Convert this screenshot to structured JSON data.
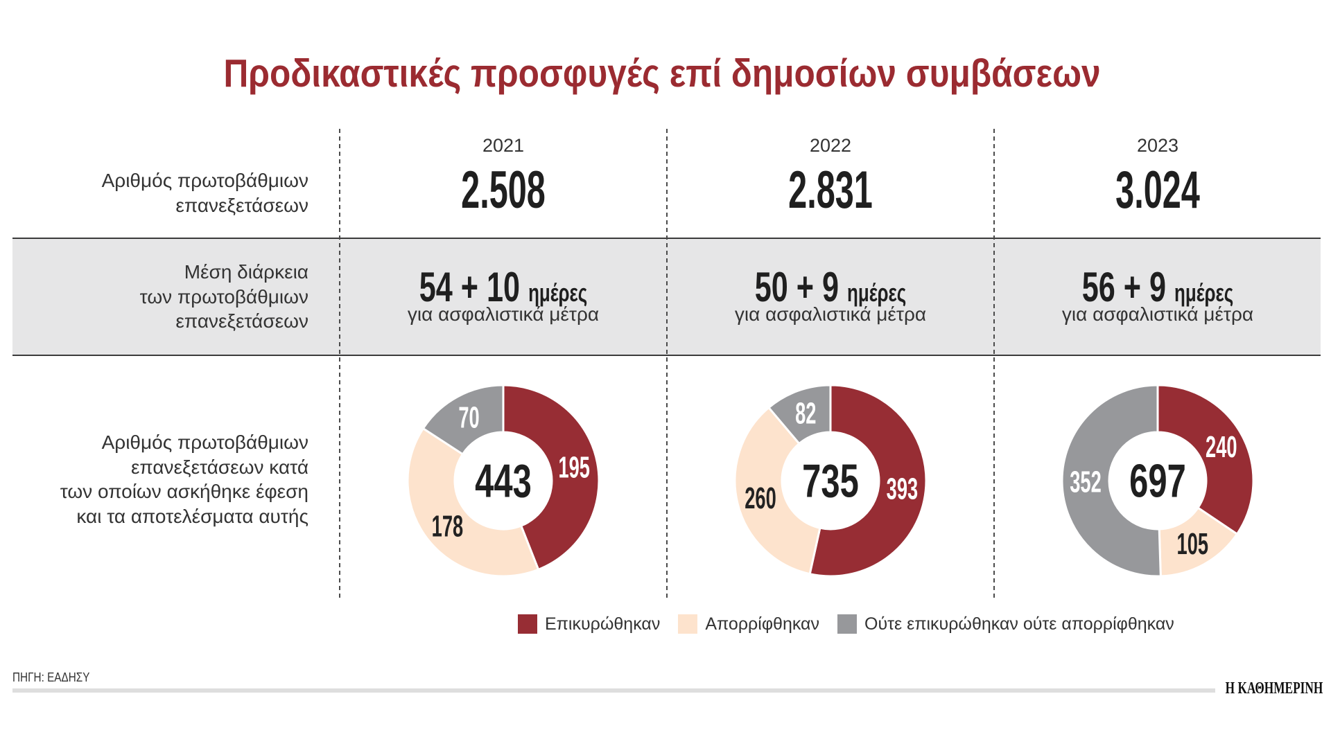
{
  "title": "Προδικαστικές προσφυγές επί δημοσίων συμβάσεων",
  "row_labels": {
    "reviews": [
      "Αριθμός πρωτοβάθμιων",
      "επανεξετάσεων"
    ],
    "duration": [
      "Μέση διάρκεια",
      "των πρωτοβάθμιων",
      "επανεξετάσεων"
    ],
    "appeals": [
      "Αριθμός πρωτοβάθμιων",
      "επανεξετάσεων κατά",
      "των οποίων ασκήθηκε έφεση",
      "και τα αποτελέσματα αυτής"
    ]
  },
  "columns": [
    {
      "year": "2021",
      "reviews": "2.508",
      "duration_days": "54 + 10",
      "duration_unit": "ημέρες",
      "duration_note": "για ασφαλιστικά μέτρα"
    },
    {
      "year": "2022",
      "reviews": "2.831",
      "duration_days": "50 + 9",
      "duration_unit": "ημέρες",
      "duration_note": "για ασφαλιστικά μέτρα"
    },
    {
      "year": "2023",
      "reviews": "3.024",
      "duration_days": "56 + 9",
      "duration_unit": "ημέρες",
      "duration_note": "για ασφαλιστικά μέτρα"
    }
  ],
  "chart_data": {
    "type": "pie",
    "series": [
      {
        "name": "Επικυρώθηκαν",
        "color": "#972d34",
        "label_color": "#ffffff"
      },
      {
        "name": "Απορρίφθηκαν",
        "color": "#fde3cd",
        "label_color": "#222222"
      },
      {
        "name": "Ούτε επικυρώθηκαν ούτε απορρίφθηκαν",
        "color": "#97989b",
        "label_color": "#ffffff"
      }
    ],
    "charts": [
      {
        "total": 443,
        "values": [
          195,
          178,
          70
        ]
      },
      {
        "total": 735,
        "values": [
          393,
          260,
          82
        ]
      },
      {
        "total": 697,
        "values": [
          240,
          105,
          352
        ]
      }
    ]
  },
  "colors": {
    "title": "#9b2b31",
    "band": "#e6e6e7"
  },
  "footer": {
    "source": "ΠΗΓΗ: ΕΑΔΗΣΥ",
    "brand": "Η ΚΑΘΗΜΕΡΙΝΗ"
  }
}
